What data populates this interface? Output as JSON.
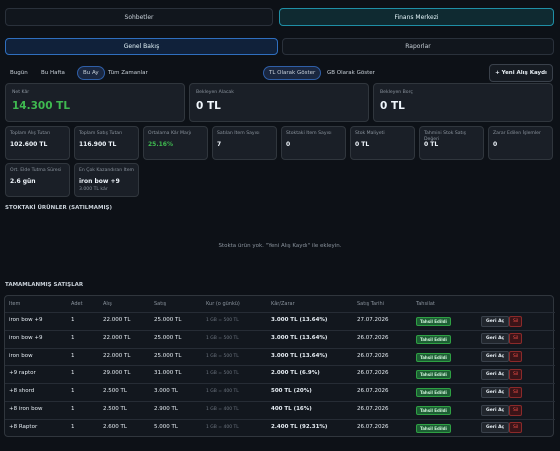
{
  "tabs": {
    "items": [
      "Sohbetler",
      "Finans Merkezi"
    ],
    "active": 1
  },
  "subtabs": {
    "items": [
      "Genel Bakış",
      "Raporlar"
    ],
    "active": 0
  },
  "periods": {
    "items": [
      "Bugün",
      "Bu Hafta",
      "Bu Ay",
      "Tüm Zamanlar"
    ],
    "active": 2
  },
  "currency": {
    "items": [
      "TL Olarak Göster",
      "GB Olarak Göster"
    ],
    "active": 0
  },
  "new_button": "+ Yeni Alış Kaydı",
  "summary": [
    {
      "label": "Net Kâr",
      "value": "14.300 TL"
    },
    {
      "label": "Bekleyen Alacak",
      "value": "0 TL"
    },
    {
      "label": "Bekleyen Borç",
      "value": "0 TL"
    }
  ],
  "stats": [
    {
      "label": "Toplam Alış Tutarı",
      "value": "102.600 TL"
    },
    {
      "label": "Toplam Satış Tutarı",
      "value": "116.900 TL"
    },
    {
      "label": "Ortalama Kâr Marjı",
      "value": "25.16%"
    },
    {
      "label": "Satılan Item Sayısı",
      "value": "7"
    },
    {
      "label": "Stoktaki Item Sayısı",
      "value": "0"
    },
    {
      "label": "Stok Maliyeti",
      "value": "0 TL"
    },
    {
      "label": "Tahmini Stok Satış Değeri",
      "value": "0 TL"
    },
    {
      "label": "Zarar Edilen İşlemler",
      "value": "0"
    }
  ],
  "stats2": [
    {
      "label": "Ort. Elde Tutma Süresi",
      "value": "2.6 gün"
    },
    {
      "label": "En Çok Kazandıran Item",
      "value": "iron bow +9",
      "note": "3.000 TL kâr"
    }
  ],
  "stock": {
    "title": "STOKTAKİ ÜRÜNLER (SATILMAMIŞ)",
    "empty": "Stokta ürün yok. \"Yeni Alış Kaydı\" ile ekleyin."
  },
  "sales": {
    "title": "TAMAMLANMIŞ SATIŞLAR",
    "headers": [
      "Item",
      "Adet",
      "Alış",
      "Satış",
      "Kur (o günkü)",
      "Kâr/Zarar",
      "Satış Tarihi",
      "Tahsilat"
    ],
    "rows": [
      [
        "iron bow +9",
        "1",
        "22.000 TL",
        "25.000 TL",
        "1 GB = 500 TL",
        "3.000 TL (13.64%)",
        "27.07.2026",
        "Tahsil Edildi",
        "Geri Aç",
        "Sil"
      ],
      [
        "iron bow +9",
        "1",
        "22.000 TL",
        "25.000 TL",
        "1 GB = 500 TL",
        "3.000 TL (13.64%)",
        "26.07.2026",
        "Tahsil Edildi",
        "Geri Aç",
        "Sil"
      ],
      [
        "iron bow",
        "1",
        "22.000 TL",
        "25.000 TL",
        "1 GB = 500 TL",
        "3.000 TL (13.64%)",
        "26.07.2026",
        "Tahsil Edildi",
        "Geri Aç",
        "Sil"
      ],
      [
        "+9 raptor",
        "1",
        "29.000 TL",
        "31.000 TL",
        "1 GB = 500 TL",
        "2.000 TL (6.9%)",
        "26.07.2026",
        "Tahsil Edildi",
        "Geri Aç",
        "Sil"
      ],
      [
        "+8 shord",
        "1",
        "2.500 TL",
        "3.000 TL",
        "1 GB = 400 TL",
        "500 TL (20%)",
        "26.07.2026",
        "Tahsil Edildi",
        "Geri Aç",
        "Sil"
      ],
      [
        "+8 iron bow",
        "1",
        "2.500 TL",
        "2.900 TL",
        "1 GB = 400 TL",
        "400 TL (16%)",
        "26.07.2026",
        "Tahsil Edildi",
        "Geri Aç",
        "Sil"
      ],
      [
        "+8 Raptor",
        "1",
        "2.600 TL",
        "5.000 TL",
        "1 GB = 400 TL",
        "2.400 TL (92.31%)",
        "26.07.2026",
        "Tahsil Edildi",
        "Geri Aç",
        "Sil"
      ]
    ]
  }
}
